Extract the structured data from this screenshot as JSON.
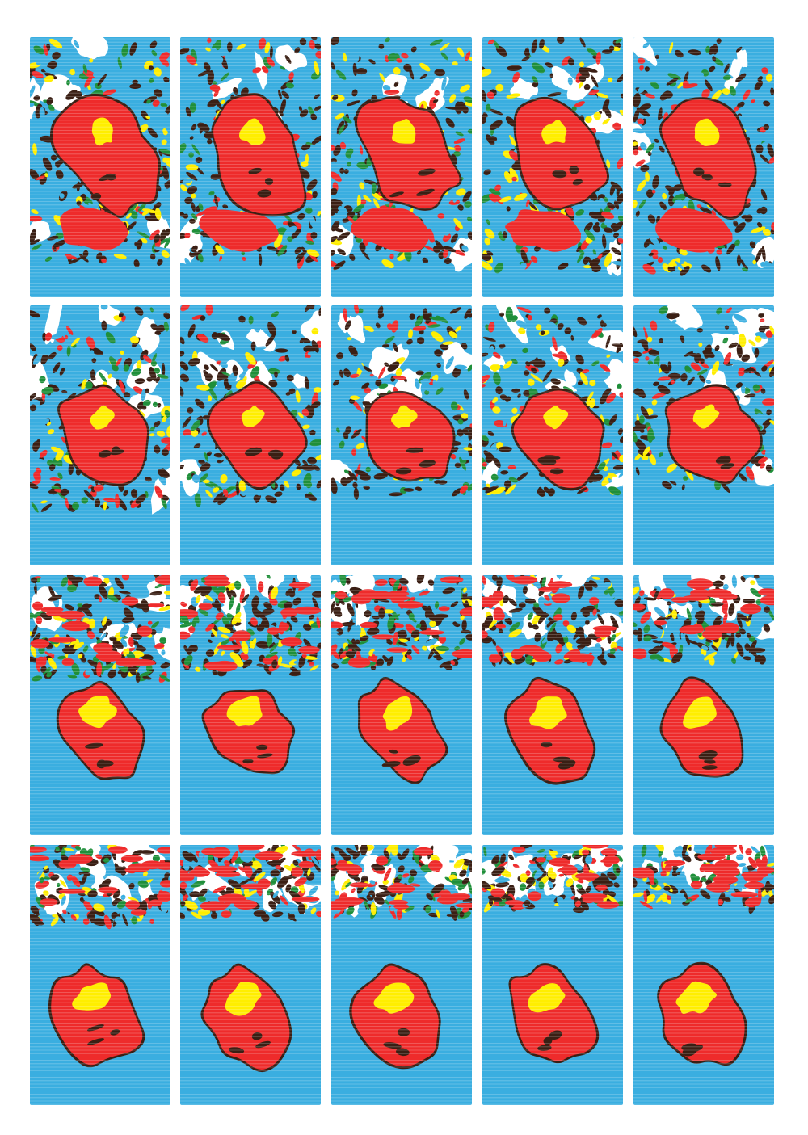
{
  "artwork": {
    "rows": 4,
    "columns": 5,
    "frame_count": 20,
    "colors": {
      "paper": "#ffffff",
      "water": "#3aaee0",
      "land": "#ee2b2b",
      "highlight": "#ffee00",
      "foliage": "#1f8f3a",
      "outline": "#3a1f14"
    },
    "frames": [
      {
        "row": 1,
        "col": 1,
        "waterline": 0.87,
        "debris_density": 0.95
      },
      {
        "row": 1,
        "col": 2,
        "waterline": 0.87,
        "debris_density": 0.93
      },
      {
        "row": 1,
        "col": 3,
        "waterline": 0.88,
        "debris_density": 0.9
      },
      {
        "row": 1,
        "col": 4,
        "waterline": 0.9,
        "debris_density": 0.88
      },
      {
        "row": 1,
        "col": 5,
        "waterline": 0.9,
        "debris_density": 0.86
      },
      {
        "row": 2,
        "col": 1,
        "waterline": 0.78,
        "debris_density": 0.8
      },
      {
        "row": 2,
        "col": 2,
        "waterline": 0.75,
        "debris_density": 0.78
      },
      {
        "row": 2,
        "col": 3,
        "waterline": 0.73,
        "debris_density": 0.75
      },
      {
        "row": 2,
        "col": 4,
        "waterline": 0.72,
        "debris_density": 0.72
      },
      {
        "row": 2,
        "col": 5,
        "waterline": 0.7,
        "debris_density": 0.7
      },
      {
        "row": 3,
        "col": 1,
        "waterline": 0.4,
        "debris_density": 0.6
      },
      {
        "row": 3,
        "col": 2,
        "waterline": 0.38,
        "debris_density": 0.56
      },
      {
        "row": 3,
        "col": 3,
        "waterline": 0.36,
        "debris_density": 0.52
      },
      {
        "row": 3,
        "col": 4,
        "waterline": 0.34,
        "debris_density": 0.48
      },
      {
        "row": 3,
        "col": 5,
        "waterline": 0.33,
        "debris_density": 0.45
      },
      {
        "row": 4,
        "col": 1,
        "waterline": 0.3,
        "debris_density": 0.42
      },
      {
        "row": 4,
        "col": 2,
        "waterline": 0.28,
        "debris_density": 0.4
      },
      {
        "row": 4,
        "col": 3,
        "waterline": 0.27,
        "debris_density": 0.38
      },
      {
        "row": 4,
        "col": 4,
        "waterline": 0.25,
        "debris_density": 0.36
      },
      {
        "row": 4,
        "col": 5,
        "waterline": 0.24,
        "debris_density": 0.34
      }
    ]
  }
}
